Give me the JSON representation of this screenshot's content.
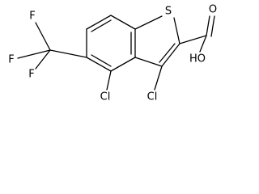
{
  "atoms": {
    "sulfur": "S",
    "carbonyl_oxygen": "O",
    "hydroxyl": "HO",
    "chlorine_3": "Cl",
    "chlorine_4": "Cl",
    "fluorine_top": "F",
    "fluorine_left": "F",
    "fluorine_bottom": "F"
  }
}
